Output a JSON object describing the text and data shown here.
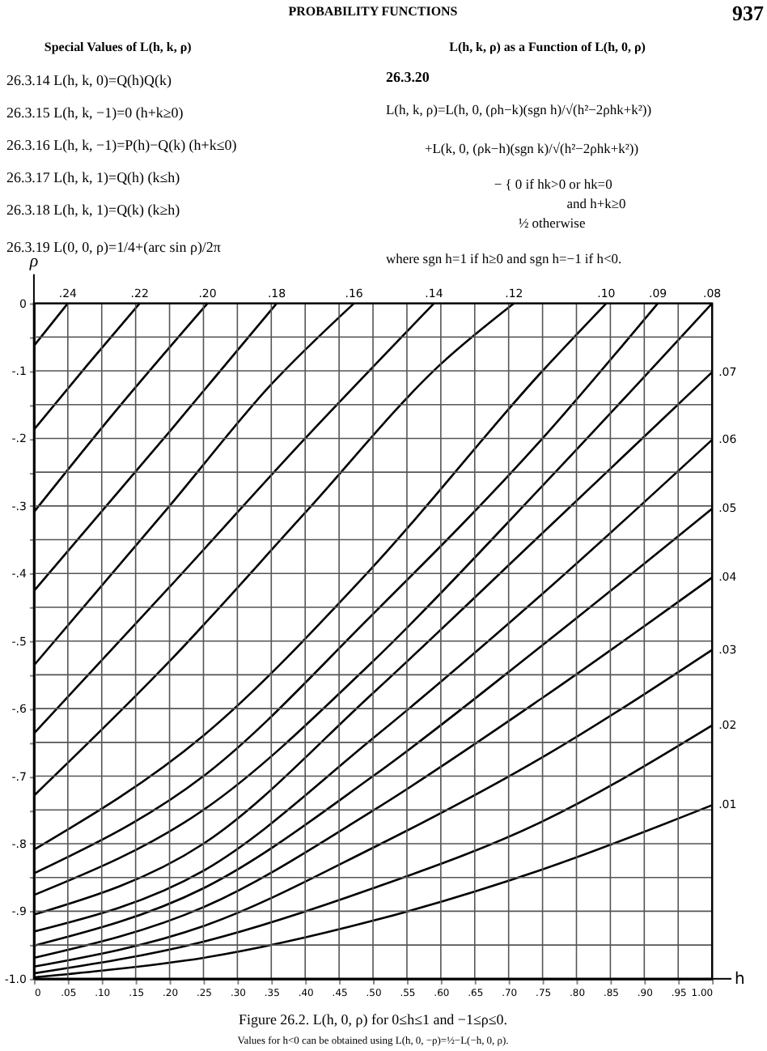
{
  "chart_data": {
    "type": "line",
    "title": "PROBABILITY FUNCTIONS",
    "annotations": [
      "937",
      "Special Values of L(h, k, ρ)",
      "26.3.14     L(h, k, 0)=Q(h)Q(k)",
      "26.3.15     L(h, k, −1)=0      (h+k≥0)",
      "26.3.16  L(h, k, −1)=P(h)−Q(k)      (h+k≤0)",
      "26.3.17     L(h, k, 1)=Q(h)      (k≤h)",
      "26.3.18     L(h, k, 1)=Q(k)      (k≥h)",
      "26.3.19     L(0, 0, ρ)=1/4+(arc sin ρ)/2π",
      "L(h, k, ρ) as a Function of L(h, 0, ρ)",
      "26.3.20",
      "L(h, k, ρ)=L(h, 0, (ρh−k)(sgn h)/√(h²−2ρhk+k²))",
      "+L(k, 0, (ρk−h)(sgn k)/√(h²−2ρhk+k²))",
      "− { 0    if hk>0 or hk=0",
      "and h+k≥0",
      "½    otherwise",
      "where sgn h=1 if h≥0 and sgn h=−1 if h<0.",
      "Figure 26.2.   L(h, 0, ρ)   for  0≤h≤1  and  −1≤ρ≤0.",
      "Values for h<0 can be obtained using L(h, 0, −ρ)=½−L(−h, 0, ρ)."
    ],
    "xlabel": "h",
    "ylabel": "ρ",
    "xlim": [
      0,
      1
    ],
    "ylim": [
      -1,
      0
    ],
    "xticks": [
      0,
      {
        "value": 0.05,
        "label": ".05"
      },
      {
        "value": 0.1,
        "label": ".10"
      },
      {
        "value": 0.15,
        "label": ".15"
      },
      {
        "value": 0.2,
        "label": ".20"
      },
      {
        "value": 0.25,
        "label": ".25"
      },
      {
        "value": 0.3,
        "label": ".30"
      },
      {
        "value": 0.35,
        "label": ".35"
      },
      {
        "value": 0.4,
        "label": ".40"
      },
      {
        "value": 0.45,
        "label": ".45"
      },
      {
        "value": 0.5,
        "label": ".50"
      },
      {
        "value": 0.55,
        "label": ".55"
      },
      {
        "value": 0.6,
        "label": ".60"
      },
      {
        "value": 0.65,
        "label": ".65"
      },
      {
        "value": 0.7,
        "label": ".70"
      },
      {
        "value": 0.75,
        "label": ".75"
      },
      {
        "value": 0.8,
        "label": ".80"
      },
      {
        "value": 0.85,
        "label": ".85"
      },
      {
        "value": 0.9,
        "label": ".90"
      },
      {
        "value": 0.95,
        "label": ".95"
      },
      {
        "value": 1,
        "label": "1.00"
      }
    ],
    "yticks": [
      0,
      {
        "value": -0.05,
        "label": null
      },
      {
        "value": -0.1,
        "label": "-.1"
      },
      {
        "value": -0.15,
        "label": null
      },
      {
        "value": -0.2,
        "label": "-.2"
      },
      {
        "value": -0.25,
        "label": null
      },
      {
        "value": -0.3,
        "label": "-.3"
      },
      {
        "value": -0.35,
        "label": null
      },
      {
        "value": -0.4,
        "label": "-.4"
      },
      {
        "value": -0.45,
        "label": null
      },
      {
        "value": -0.5,
        "label": "-.5"
      },
      {
        "value": -0.55,
        "label": null
      },
      {
        "value": -0.6,
        "label": "-.6"
      },
      {
        "value": -0.65,
        "label": null
      },
      {
        "value": -0.7,
        "label": "-.7"
      },
      {
        "value": -0.75,
        "label": null
      },
      {
        "value": -0.8,
        "label": "-.8"
      },
      {
        "value": -0.85,
        "label": null
      },
      {
        "value": -0.9,
        "label": "-.9"
      },
      {
        "value": -0.95,
        "label": null
      },
      {
        "value": -1,
        "label": "-1.0"
      }
    ],
    "grid": true,
    "legend": false,
    "marker": "none",
    "line_style": "solid",
    "series": [
      {
        "name": ".24",
        "color": "#000000",
        "x": [
          0,
          0.05
        ],
        "values": [
          -0.063,
          0
        ]
      },
      {
        "name": ".22",
        "color": "#000000",
        "x": [
          0,
          0.08,
          0.156
        ],
        "values": [
          -0.187,
          -0.09,
          0
        ]
      },
      {
        "name": ".20",
        "color": "#000000",
        "x": [
          0,
          0.12,
          0.256
        ],
        "values": [
          -0.309,
          -0.16,
          0
        ]
      },
      {
        "name": ".18",
        "color": "#000000",
        "x": [
          0,
          0.2,
          0.358
        ],
        "values": [
          -0.426,
          -0.19,
          0
        ]
      },
      {
        "name": ".16",
        "color": "#000000",
        "x": [
          0,
          0.2,
          0.35,
          0.472
        ],
        "values": [
          -0.536,
          -0.3,
          -0.12,
          0
        ]
      },
      {
        "name": ".14",
        "color": "#000000",
        "x": [
          0,
          0.2,
          0.4,
          0.59
        ],
        "values": [
          -0.637,
          -0.42,
          -0.2,
          0
        ]
      },
      {
        "name": ".12",
        "color": "#000000",
        "x": [
          0,
          0.2,
          0.4,
          0.6,
          0.708
        ],
        "values": [
          -0.729,
          -0.53,
          -0.31,
          -0.09,
          0
        ]
      },
      {
        "name": ".10",
        "color": "#000000",
        "x": [
          0,
          0.25,
          0.5,
          0.75,
          0.844
        ],
        "values": [
          -0.809,
          -0.64,
          -0.39,
          -0.1,
          0
        ]
      },
      {
        "name": ".09",
        "color": "#000000",
        "x": [
          0,
          0.25,
          0.5,
          0.75,
          0.92
        ],
        "values": [
          -0.844,
          -0.7,
          -0.46,
          -0.2,
          0
        ]
      },
      {
        "name": ".08",
        "color": "#000000",
        "x": [
          0,
          0.25,
          0.5,
          0.75,
          1
        ],
        "values": [
          -0.876,
          -0.75,
          -0.53,
          -0.27,
          0
        ]
      },
      {
        "name": ".07",
        "color": "#000000",
        "x": [
          0,
          0.25,
          0.5,
          0.75,
          1
        ],
        "values": [
          -0.905,
          -0.8,
          -0.577,
          -0.34,
          -0.102
        ]
      },
      {
        "name": ".06",
        "color": "#000000",
        "x": [
          0,
          0.25,
          0.5,
          0.75,
          1
        ],
        "values": [
          -0.93,
          -0.84,
          -0.644,
          -0.43,
          -0.202
        ]
      },
      {
        "name": ".05",
        "color": "#000000",
        "x": [
          0,
          0.25,
          0.5,
          0.75,
          1
        ],
        "values": [
          -0.951,
          -0.866,
          -0.7,
          -0.506,
          -0.304
        ]
      },
      {
        "name": ".04",
        "color": "#000000",
        "x": [
          0,
          0.25,
          0.5,
          0.75,
          1
        ],
        "values": [
          -0.969,
          -0.894,
          -0.751,
          -0.584,
          -0.406
        ]
      },
      {
        "name": ".03",
        "color": "#000000",
        "x": [
          0,
          0.25,
          0.5,
          0.75,
          1
        ],
        "values": [
          -0.982,
          -0.922,
          -0.806,
          -0.672,
          -0.513
        ]
      },
      {
        "name": ".02",
        "color": "#000000",
        "x": [
          0,
          0.25,
          0.5,
          0.75,
          1
        ],
        "values": [
          -0.992,
          -0.945,
          -0.866,
          -0.767,
          -0.625
        ]
      },
      {
        "name": ".01",
        "color": "#000000",
        "x": [
          0,
          0.1,
          0.25,
          0.5,
          0.75,
          1
        ],
        "values": [
          -0.998,
          -0.988,
          -0.969,
          -0.914,
          -0.838,
          -0.743
        ]
      }
    ]
  }
}
